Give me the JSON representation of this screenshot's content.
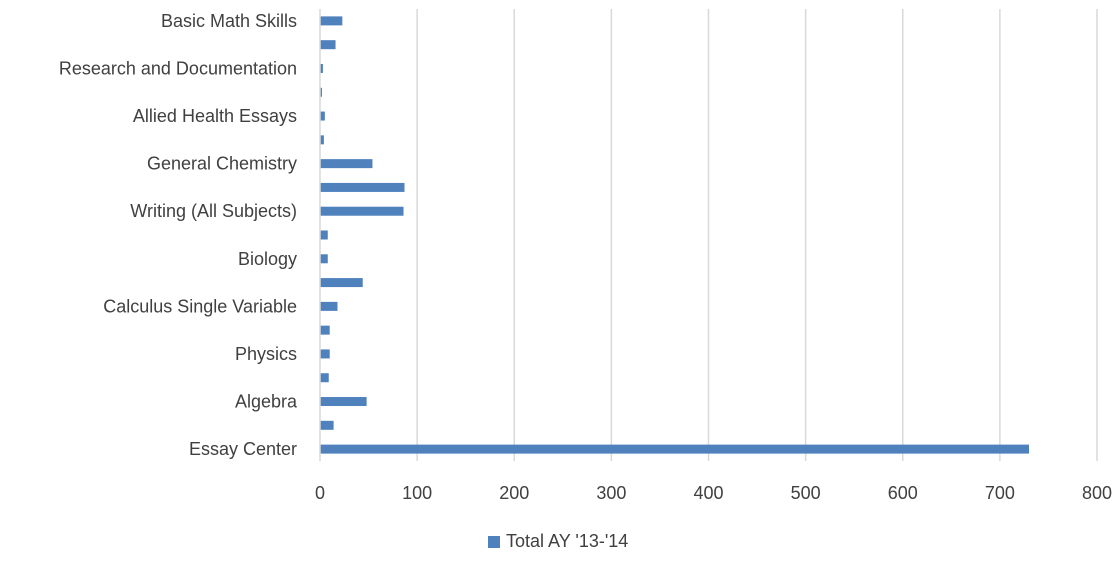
{
  "chart_data": {
    "type": "bar",
    "orientation": "horizontal",
    "title": "",
    "xlabel": "",
    "ylabel": "",
    "xlim": [
      0,
      800
    ],
    "x_ticks": [
      0,
      100,
      200,
      300,
      400,
      500,
      600,
      700,
      800
    ],
    "grid": "vertical",
    "legend_position": "bottom",
    "bar_color": "#4F81BD",
    "grid_color": "#D9D9D9",
    "categories": [
      "Essay Center",
      "",
      "Algebra",
      "",
      "Physics",
      "",
      "Calculus Single Variable",
      "",
      "Biology",
      "",
      "Writing (All Subjects)",
      "",
      "General Chemistry",
      "",
      "Allied Health Essays ",
      "",
      "Research and Documentation",
      "",
      "Basic Math Skills"
    ],
    "series": [
      {
        "name": "Total AY '13-'14",
        "values": [
          730,
          14,
          48,
          9,
          10,
          10,
          18,
          44,
          8,
          8,
          86,
          87,
          54,
          4,
          5,
          2,
          3,
          16,
          23
        ]
      }
    ]
  }
}
